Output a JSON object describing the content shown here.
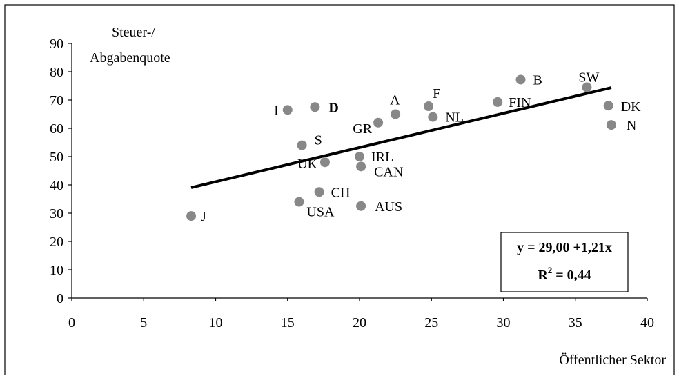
{
  "chart_data": {
    "type": "scatter",
    "title": "",
    "ylabel_lines": [
      "Steuer-/",
      "Abgabenquote"
    ],
    "xlabel": "Öffentlicher Sektor",
    "xlim": [
      0,
      40
    ],
    "ylim": [
      0,
      90
    ],
    "x_ticks": [
      0,
      5,
      10,
      15,
      20,
      25,
      30,
      35,
      40
    ],
    "y_ticks": [
      0,
      10,
      20,
      30,
      40,
      50,
      60,
      70,
      80,
      90
    ],
    "grid": false,
    "point_color": "#888888",
    "points": [
      {
        "label": "J",
        "x": 8.3,
        "y": 29,
        "bold": false
      },
      {
        "label": "I",
        "x": 15.0,
        "y": 66.5,
        "bold": false
      },
      {
        "label": "D",
        "x": 16.9,
        "y": 67.5,
        "bold": true
      },
      {
        "label": "S",
        "x": 16.0,
        "y": 54,
        "bold": false
      },
      {
        "label": "UK",
        "x": 17.6,
        "y": 48,
        "bold": false
      },
      {
        "label": "CH",
        "x": 17.2,
        "y": 37.5,
        "bold": false
      },
      {
        "label": "USA",
        "x": 15.8,
        "y": 34,
        "bold": false
      },
      {
        "label": "GR",
        "x": 21.3,
        "y": 62,
        "bold": false
      },
      {
        "label": "A",
        "x": 22.5,
        "y": 65,
        "bold": false
      },
      {
        "label": "IRL",
        "x": 20.0,
        "y": 50,
        "bold": false
      },
      {
        "label": "CAN",
        "x": 20.1,
        "y": 46.5,
        "bold": false
      },
      {
        "label": "AUS",
        "x": 20.1,
        "y": 32.5,
        "bold": false
      },
      {
        "label": "F",
        "x": 24.8,
        "y": 67.8,
        "bold": false
      },
      {
        "label": "NL",
        "x": 25.1,
        "y": 64,
        "bold": false
      },
      {
        "label": "FIN",
        "x": 29.6,
        "y": 69.3,
        "bold": false
      },
      {
        "label": "B",
        "x": 31.2,
        "y": 77.2,
        "bold": false
      },
      {
        "label": "SW",
        "x": 35.8,
        "y": 74.5,
        "bold": false
      },
      {
        "label": "DK",
        "x": 37.3,
        "y": 68,
        "bold": false
      },
      {
        "label": "N",
        "x": 37.5,
        "y": 61.2,
        "bold": false
      }
    ],
    "trendline": {
      "x_start": 8.3,
      "x_end": 37.5,
      "intercept": 29.0,
      "slope": 1.21
    },
    "equation_text": "y = 29,00 +1,21x",
    "r2_prefix": "R",
    "r2_sup": "2",
    "r2_suffix": " = 0,44"
  }
}
